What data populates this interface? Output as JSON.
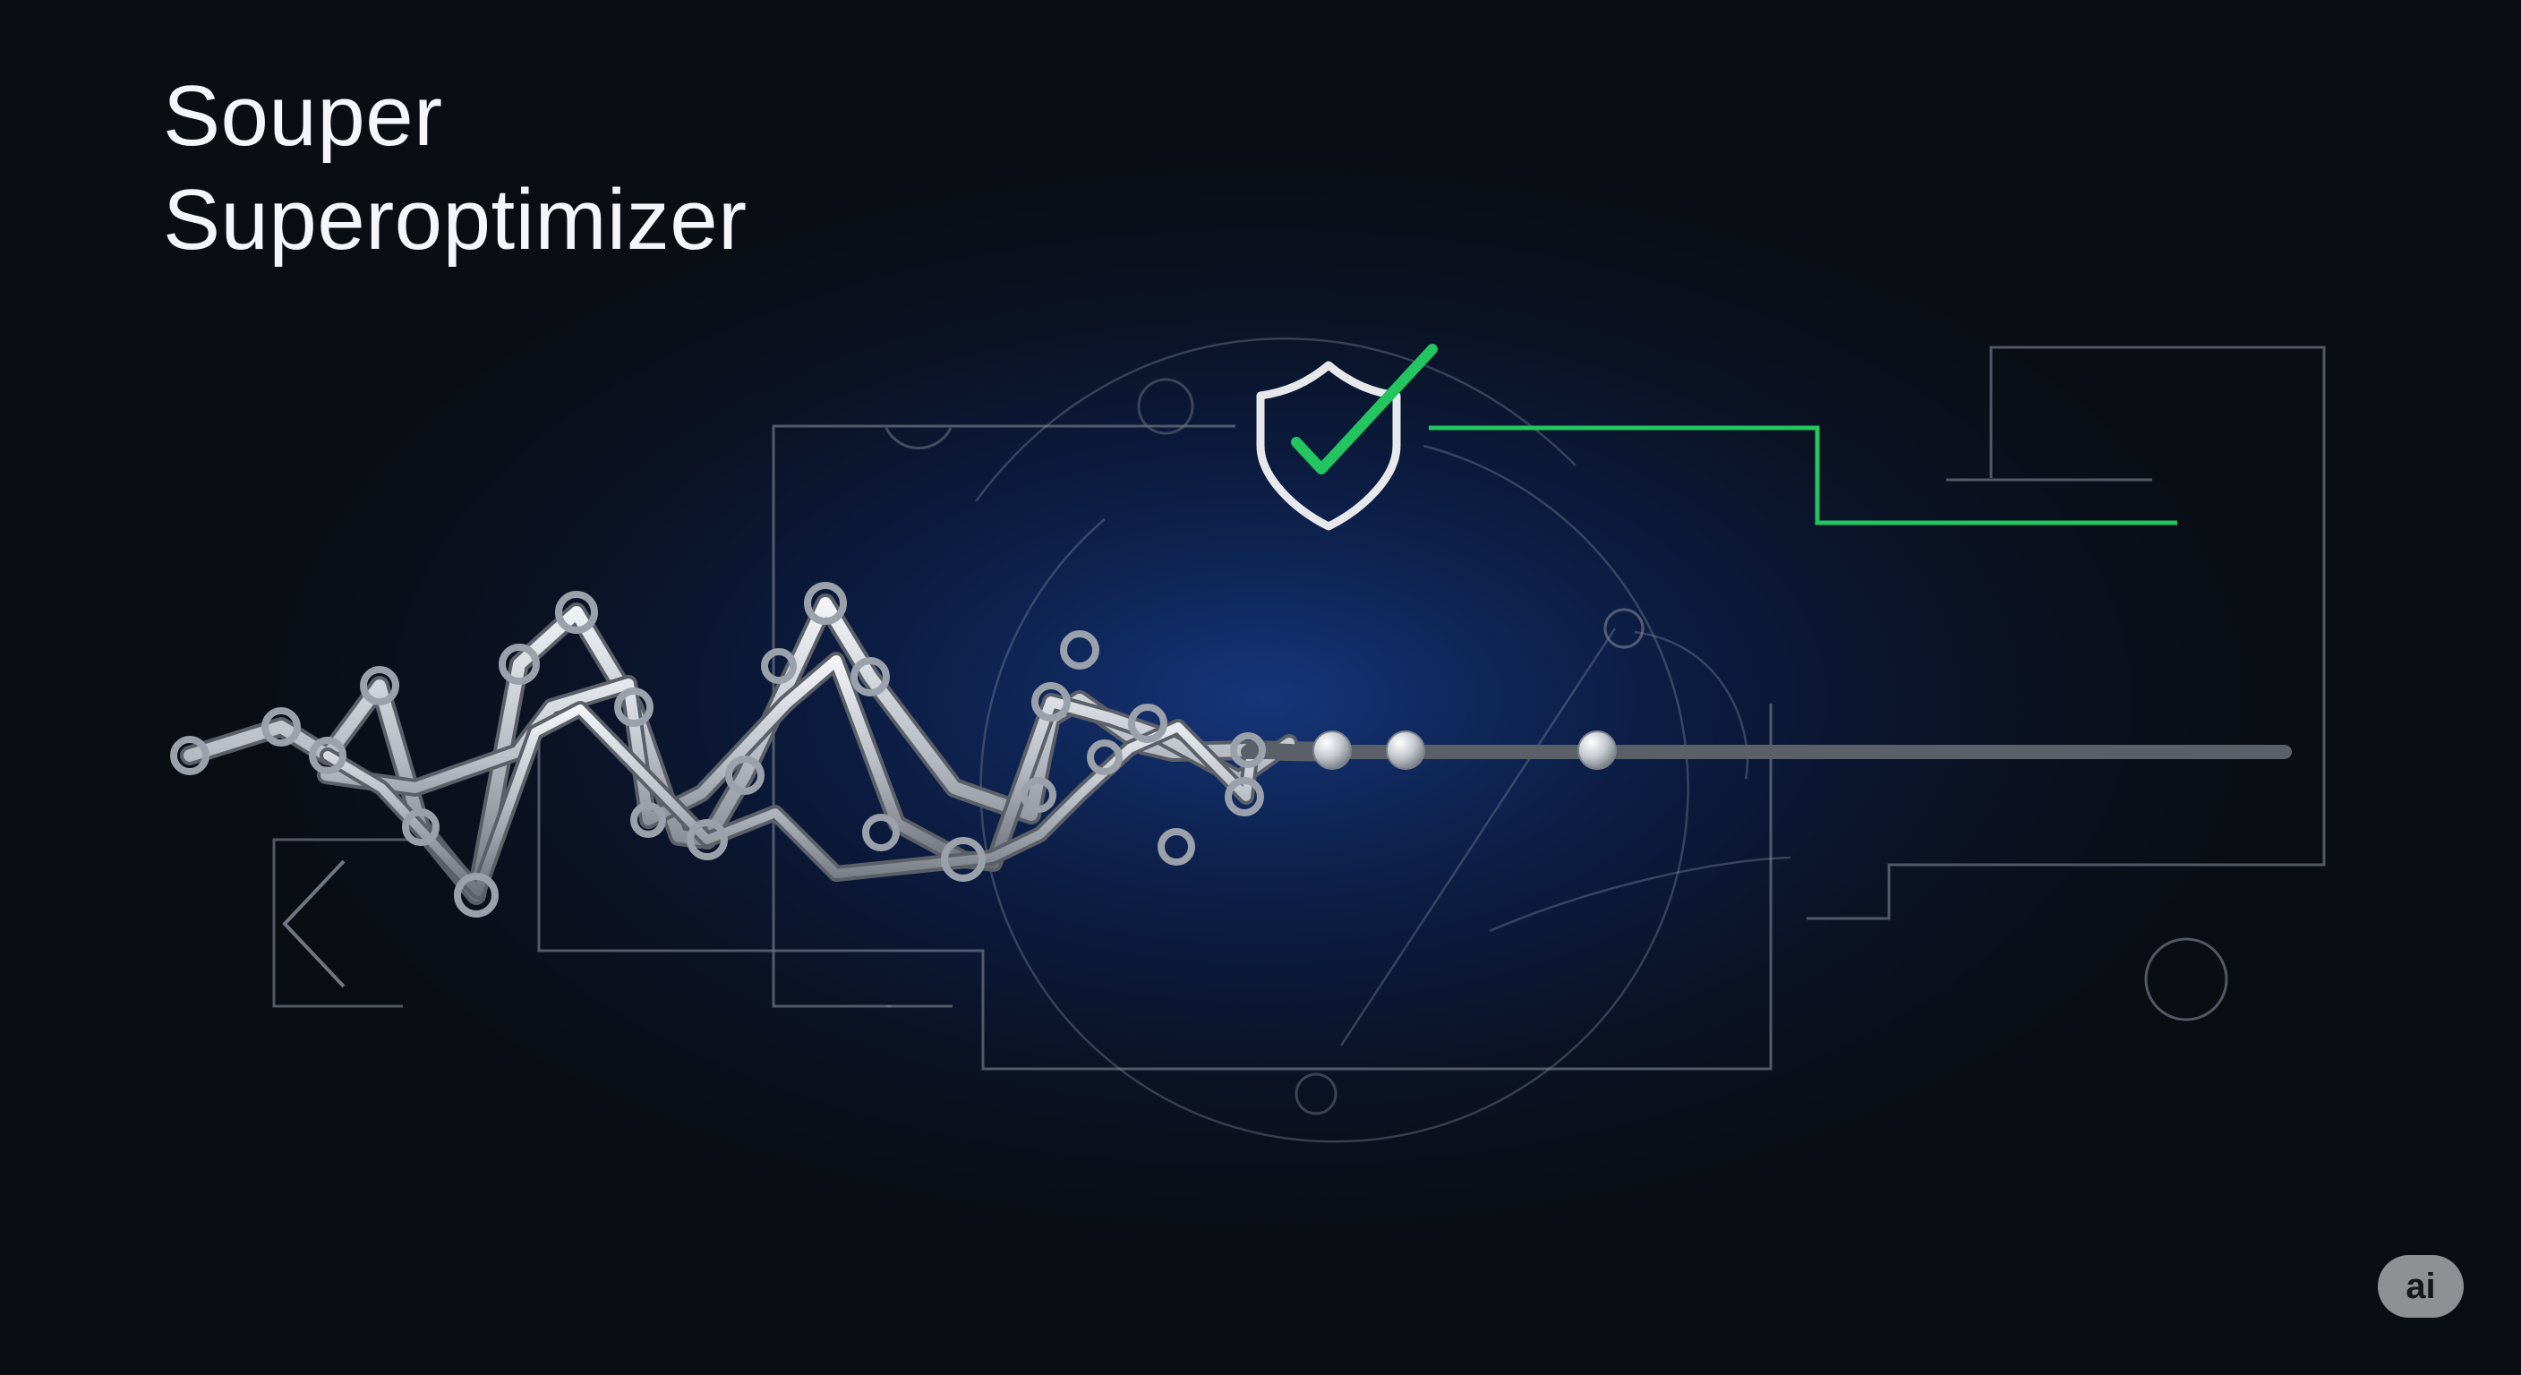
{
  "title": {
    "line1": "Souper",
    "line2": "Superoptimizer"
  },
  "badge": {
    "label": "ai"
  },
  "icons": {
    "shield": "shield-check-icon",
    "back": "chevron-left-icon"
  },
  "colors": {
    "background": "#0a0d12",
    "glow": "#16357a",
    "accent": "#22c55e",
    "wire": "#c8ccd2",
    "circuit": "#6b7280",
    "text": "#f4f6fa"
  }
}
